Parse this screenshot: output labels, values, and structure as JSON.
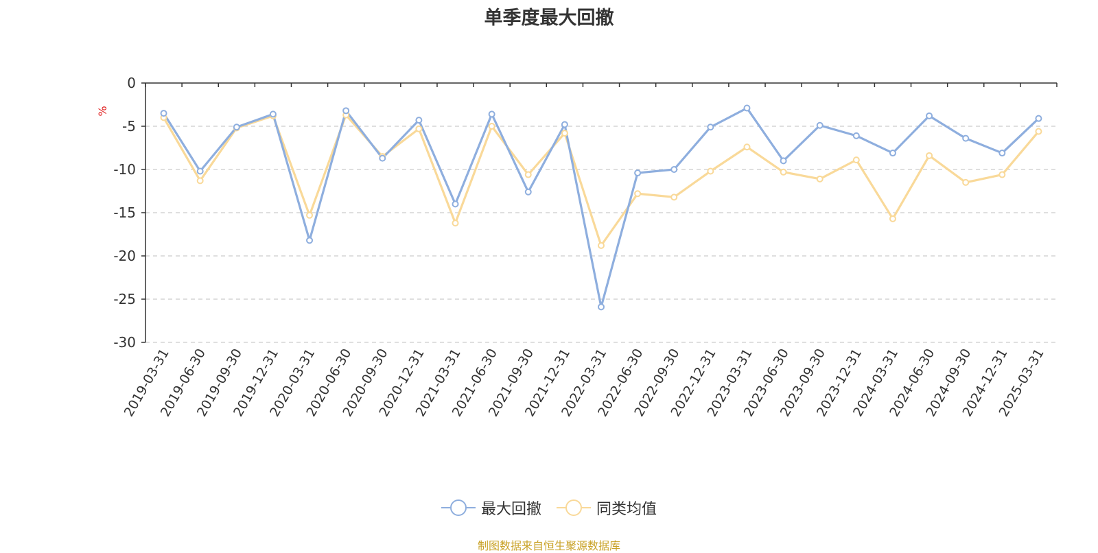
{
  "chart_data": {
    "type": "line",
    "title": "单季度最大回撤",
    "ylabel": "%",
    "xlabel": "",
    "ylim": [
      -30,
      0
    ],
    "yticks": [
      0,
      -5,
      -10,
      -15,
      -20,
      -25,
      -30
    ],
    "grid": true,
    "legend_position": "bottom-center",
    "categories": [
      "2019-03-31",
      "2019-06-30",
      "2019-09-30",
      "2019-12-31",
      "2020-03-31",
      "2020-06-30",
      "2020-09-30",
      "2020-12-31",
      "2021-03-31",
      "2021-06-30",
      "2021-09-30",
      "2021-12-31",
      "2022-03-31",
      "2022-06-30",
      "2022-09-30",
      "2022-12-31",
      "2023-03-31",
      "2023-06-30",
      "2023-09-30",
      "2023-12-31",
      "2024-03-31",
      "2024-06-30",
      "2024-09-30",
      "2024-12-31",
      "2025-03-31"
    ],
    "series": [
      {
        "name": "最大回撤",
        "color": "#8eaede",
        "values": [
          -3.5,
          -10.2,
          -5.1,
          -3.6,
          -18.2,
          -3.2,
          -8.7,
          -4.3,
          -14.0,
          -3.6,
          -12.6,
          -4.8,
          -25.9,
          -10.4,
          -10.0,
          -5.1,
          -2.9,
          -9.0,
          -4.9,
          -6.1,
          -8.1,
          -3.8,
          -6.4,
          -8.1,
          -4.1
        ]
      },
      {
        "name": "同类均值",
        "color": "#f9d999",
        "values": [
          -4.0,
          -11.3,
          -5.2,
          -3.8,
          -15.3,
          -3.7,
          -8.5,
          -5.3,
          -16.2,
          -5.0,
          -10.6,
          -5.8,
          -18.8,
          -12.8,
          -13.2,
          -10.2,
          -7.4,
          -10.3,
          -11.1,
          -8.9,
          -15.7,
          -8.4,
          -11.5,
          -10.6,
          -5.6
        ]
      }
    ]
  },
  "source_note": "制图数据来自恒生聚源数据库"
}
